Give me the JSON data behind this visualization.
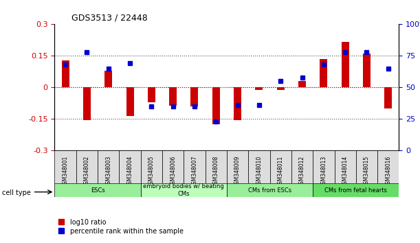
{
  "title": "GDS3513 / 22448",
  "samples": [
    "GSM348001",
    "GSM348002",
    "GSM348003",
    "GSM348004",
    "GSM348005",
    "GSM348006",
    "GSM348007",
    "GSM348008",
    "GSM348009",
    "GSM348010",
    "GSM348011",
    "GSM348012",
    "GSM348013",
    "GSM348014",
    "GSM348015",
    "GSM348016"
  ],
  "log10_ratio": [
    0.13,
    -0.155,
    0.08,
    -0.135,
    -0.07,
    -0.085,
    -0.09,
    -0.175,
    -0.155,
    -0.01,
    -0.01,
    0.03,
    0.135,
    0.215,
    0.16,
    -0.1
  ],
  "percentile_rank": [
    68,
    78,
    65,
    69,
    35,
    35,
    35,
    23,
    36,
    36,
    55,
    58,
    68,
    78,
    78,
    65
  ],
  "ylim": [
    -0.3,
    0.3
  ],
  "yticks_left": [
    -0.3,
    -0.15,
    0,
    0.15,
    0.3
  ],
  "yticks_right": [
    0,
    25,
    50,
    75,
    100
  ],
  "bar_color_red": "#cc0000",
  "bar_color_blue": "#0000cc",
  "dotted_line_color": "#555555",
  "zero_line_color": "#cc0000",
  "cell_groups": [
    {
      "label": "ESCs",
      "start": 0,
      "end": 4,
      "color": "#99ee99"
    },
    {
      "label": "embryoid bodies w/ beating\nCMs",
      "start": 4,
      "end": 8,
      "color": "#bbffbb"
    },
    {
      "label": "CMs from ESCs",
      "start": 8,
      "end": 12,
      "color": "#99ee99"
    },
    {
      "label": "CMs from fetal hearts",
      "start": 12,
      "end": 16,
      "color": "#66dd66"
    }
  ],
  "legend_red": "log10 ratio",
  "legend_blue": "percentile rank within the sample",
  "bar_width": 0.35
}
